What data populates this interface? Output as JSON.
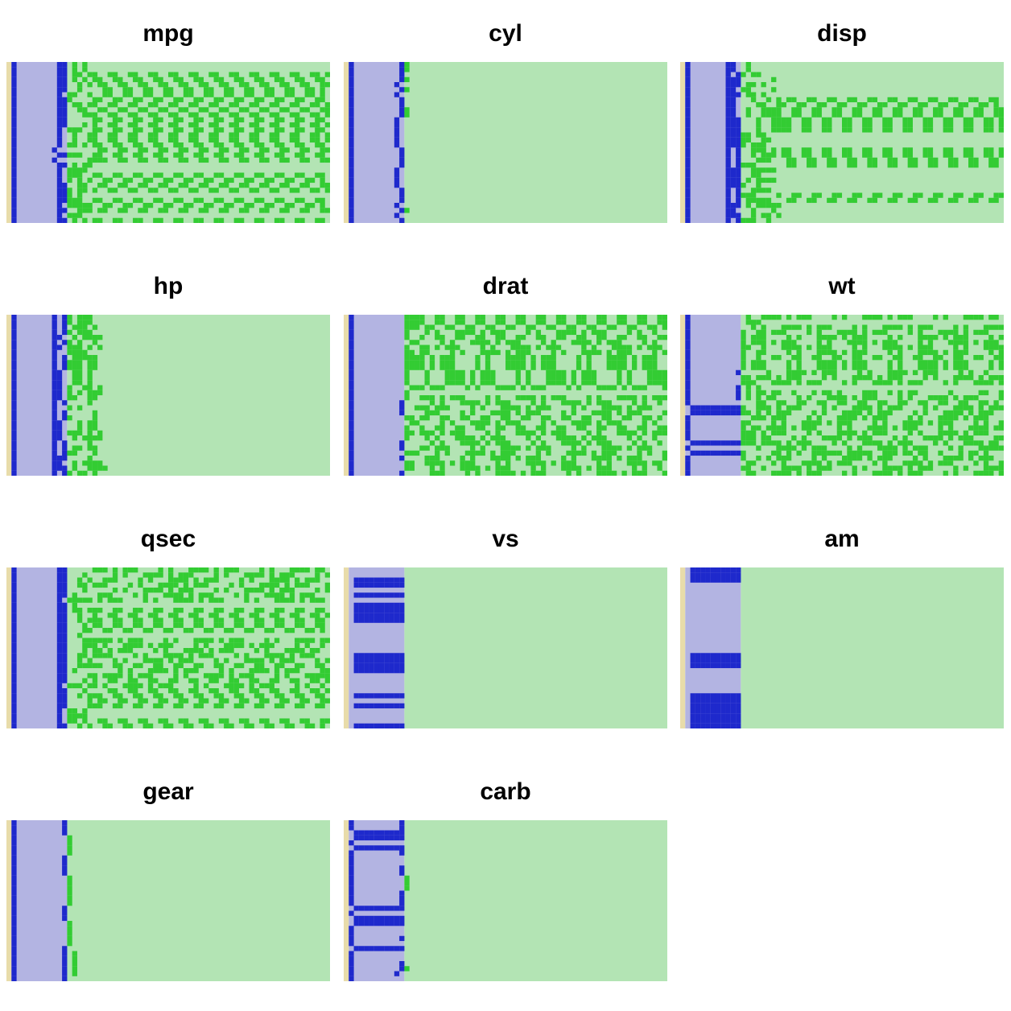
{
  "chart_data": {
    "type": "heatmap",
    "style": "pixel-bitmap (bit-plane) encoding per variable",
    "colors": {
      "sign": "#e8dcaa",
      "exponent_bg": "#b3b4e2",
      "exponent_on": "#1e29cc",
      "mantissa_bg": "#b3e4b4",
      "mantissa_on": "#33cc33"
    },
    "panels": [
      {
        "title": "mpg",
        "values": [
          21,
          21,
          22.8,
          21.4,
          18.7,
          18.1,
          14.3,
          24.4,
          22.8,
          19.2,
          17.8,
          16.4,
          17.3,
          15.2,
          10.4,
          10.4,
          14.7,
          32.4,
          30.4,
          33.9,
          21.5,
          15.5,
          15.2,
          13.3,
          19.2,
          27.3,
          26,
          30.4,
          15.8,
          19.7,
          15,
          21.4
        ]
      },
      {
        "title": "cyl",
        "values": [
          6,
          6,
          4,
          6,
          8,
          6,
          8,
          4,
          4,
          6,
          6,
          8,
          8,
          8,
          8,
          8,
          8,
          4,
          4,
          4,
          4,
          8,
          8,
          8,
          8,
          4,
          4,
          4,
          8,
          6,
          8,
          4
        ]
      },
      {
        "title": "disp",
        "values": [
          160,
          160,
          108,
          258,
          360,
          225,
          360,
          146.7,
          140.8,
          167.6,
          167.6,
          275.8,
          275.8,
          275.8,
          472,
          460,
          440,
          78.7,
          75.7,
          71.1,
          120.1,
          318,
          304,
          350,
          400,
          79,
          120.3,
          95.1,
          351,
          145,
          301,
          121
        ]
      },
      {
        "title": "hp",
        "values": [
          110,
          110,
          93,
          110,
          175,
          105,
          245,
          62,
          95,
          123,
          123,
          180,
          180,
          180,
          205,
          215,
          230,
          66,
          52,
          65,
          97,
          150,
          150,
          245,
          175,
          66,
          91,
          113,
          264,
          175,
          335,
          109
        ]
      },
      {
        "title": "drat",
        "values": [
          3.9,
          3.9,
          3.85,
          3.08,
          3.15,
          2.76,
          3.21,
          3.69,
          3.92,
          3.92,
          3.92,
          3.07,
          3.07,
          3.07,
          2.93,
          3,
          3.23,
          4.08,
          4.93,
          4.22,
          3.7,
          2.76,
          3.15,
          3.73,
          3.08,
          4.08,
          4.43,
          3.77,
          4.22,
          3.62,
          3.54,
          4.11
        ]
      },
      {
        "title": "wt",
        "values": [
          2.62,
          2.875,
          2.32,
          3.215,
          3.44,
          3.46,
          3.57,
          3.19,
          3.15,
          3.44,
          3.44,
          4.07,
          3.73,
          3.78,
          5.25,
          5.424,
          5.345,
          2.2,
          1.615,
          1.835,
          2.465,
          3.52,
          3.435,
          3.84,
          3.845,
          1.935,
          2.14,
          1.513,
          3.17,
          2.77,
          3.57,
          2.78
        ]
      },
      {
        "title": "qsec",
        "values": [
          16.46,
          17.02,
          18.61,
          19.44,
          17.02,
          20.22,
          15.84,
          20,
          22.9,
          18.3,
          18.9,
          17.4,
          17.6,
          18,
          17.98,
          17.82,
          17.42,
          19.47,
          18.52,
          19.9,
          20.01,
          16.87,
          17.3,
          15.41,
          17.05,
          18.9,
          16.7,
          16.9,
          14.5,
          15.5,
          14.6,
          18.6
        ]
      },
      {
        "title": "vs",
        "values": [
          0,
          0,
          1,
          1,
          0,
          1,
          0,
          1,
          1,
          1,
          1,
          0,
          0,
          0,
          0,
          0,
          0,
          1,
          1,
          1,
          1,
          0,
          0,
          0,
          0,
          1,
          0,
          1,
          0,
          0,
          0,
          1
        ]
      },
      {
        "title": "am",
        "values": [
          1,
          1,
          1,
          0,
          0,
          0,
          0,
          0,
          0,
          0,
          0,
          0,
          0,
          0,
          0,
          0,
          0,
          1,
          1,
          1,
          0,
          0,
          0,
          0,
          0,
          1,
          1,
          1,
          1,
          1,
          1,
          1
        ]
      },
      {
        "title": "gear",
        "values": [
          4,
          4,
          4,
          3,
          3,
          3,
          3,
          4,
          4,
          4,
          4,
          3,
          3,
          3,
          3,
          3,
          3,
          4,
          4,
          4,
          3,
          3,
          3,
          3,
          3,
          4,
          5,
          5,
          5,
          5,
          5,
          4
        ]
      },
      {
        "title": "carb",
        "values": [
          4,
          4,
          1,
          1,
          2,
          1,
          4,
          2,
          2,
          4,
          4,
          3,
          3,
          3,
          4,
          4,
          4,
          1,
          2,
          1,
          1,
          2,
          2,
          4,
          2,
          1,
          2,
          2,
          4,
          6,
          8,
          2
        ]
      }
    ]
  }
}
